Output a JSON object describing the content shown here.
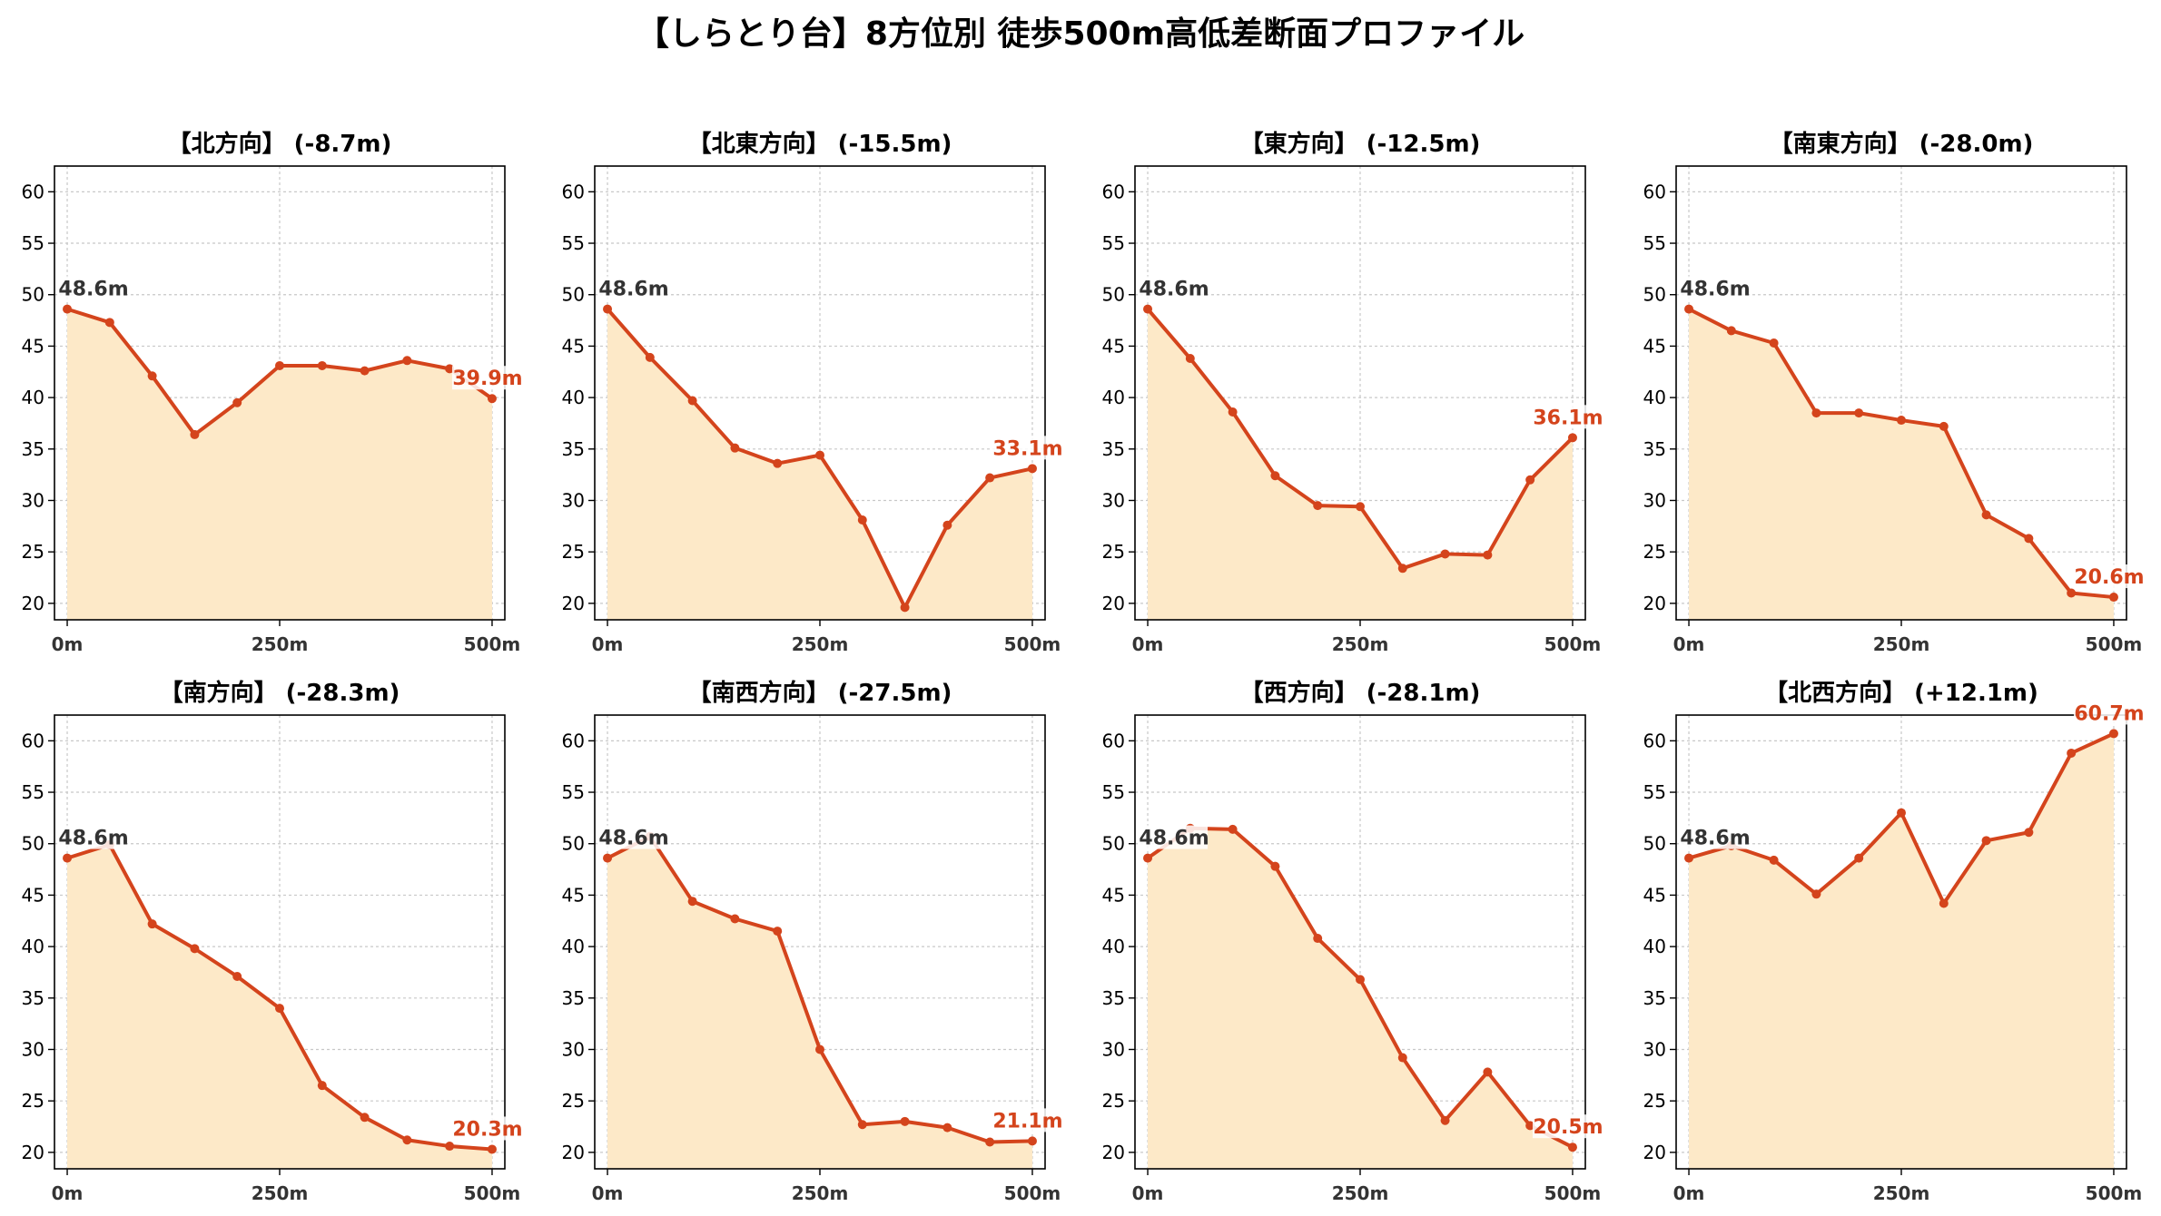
{
  "title": "【しらとり台】8方位別 徒歩500m高低差断面プロファイル",
  "colors": {
    "line": "#d4441c",
    "fill": "#fde9c8",
    "start_label": "#333333",
    "end_label": "#d4441c",
    "grid": "#c8c8c8",
    "axis": "#000000"
  },
  "chart_data": [
    {
      "type": "area",
      "title": "【北方向】 (-8.7m)",
      "x": [
        0,
        50,
        100,
        150,
        200,
        250,
        300,
        350,
        400,
        450,
        500
      ],
      "y": [
        48.6,
        47.3,
        42.1,
        36.4,
        39.5,
        43.1,
        43.1,
        42.6,
        43.6,
        42.8,
        39.9
      ],
      "start_label": "48.6m",
      "end_label": "39.9m",
      "xticks": [
        "0m",
        "250m",
        "500m"
      ],
      "xtick_values": [
        0,
        250,
        500
      ],
      "yticks": [
        20,
        25,
        30,
        35,
        40,
        45,
        50,
        55,
        60
      ],
      "ylim": [
        18.4,
        62.5
      ],
      "xlim": [
        -15,
        515
      ],
      "grid": true
    },
    {
      "type": "area",
      "title": "【北東方向】 (-15.5m)",
      "x": [
        0,
        50,
        100,
        150,
        200,
        250,
        300,
        350,
        400,
        450,
        500
      ],
      "y": [
        48.6,
        43.9,
        39.7,
        35.1,
        33.6,
        34.4,
        28.1,
        19.6,
        27.6,
        32.2,
        33.1
      ],
      "start_label": "48.6m",
      "end_label": "33.1m",
      "xticks": [
        "0m",
        "250m",
        "500m"
      ],
      "xtick_values": [
        0,
        250,
        500
      ],
      "yticks": [
        20,
        25,
        30,
        35,
        40,
        45,
        50,
        55,
        60
      ],
      "ylim": [
        18.4,
        62.5
      ],
      "xlim": [
        -15,
        515
      ],
      "grid": true
    },
    {
      "type": "area",
      "title": "【東方向】 (-12.5m)",
      "x": [
        0,
        50,
        100,
        150,
        200,
        250,
        300,
        350,
        400,
        450,
        500
      ],
      "y": [
        48.6,
        43.8,
        38.6,
        32.4,
        29.5,
        29.4,
        23.4,
        24.8,
        24.7,
        32.0,
        36.1
      ],
      "start_label": "48.6m",
      "end_label": "36.1m",
      "xticks": [
        "0m",
        "250m",
        "500m"
      ],
      "xtick_values": [
        0,
        250,
        500
      ],
      "yticks": [
        20,
        25,
        30,
        35,
        40,
        45,
        50,
        55,
        60
      ],
      "ylim": [
        18.4,
        62.5
      ],
      "xlim": [
        -15,
        515
      ],
      "grid": true
    },
    {
      "type": "area",
      "title": "【南東方向】 (-28.0m)",
      "x": [
        0,
        50,
        100,
        150,
        200,
        250,
        300,
        350,
        400,
        450,
        500
      ],
      "y": [
        48.6,
        46.5,
        45.3,
        38.5,
        38.5,
        37.8,
        37.2,
        28.6,
        26.3,
        21.0,
        20.6
      ],
      "start_label": "48.6m",
      "end_label": "20.6m",
      "xticks": [
        "0m",
        "250m",
        "500m"
      ],
      "xtick_values": [
        0,
        250,
        500
      ],
      "yticks": [
        20,
        25,
        30,
        35,
        40,
        45,
        50,
        55,
        60
      ],
      "ylim": [
        18.4,
        62.5
      ],
      "xlim": [
        -15,
        515
      ],
      "grid": true
    },
    {
      "type": "area",
      "title": "【南方向】 (-28.3m)",
      "x": [
        0,
        50,
        100,
        150,
        200,
        250,
        300,
        350,
        400,
        450,
        500
      ],
      "y": [
        48.6,
        49.9,
        42.2,
        39.8,
        37.1,
        34.0,
        26.5,
        23.4,
        21.2,
        20.6,
        20.3
      ],
      "start_label": "48.6m",
      "end_label": "20.3m",
      "xticks": [
        "0m",
        "250m",
        "500m"
      ],
      "xtick_values": [
        0,
        250,
        500
      ],
      "yticks": [
        20,
        25,
        30,
        35,
        40,
        45,
        50,
        55,
        60
      ],
      "ylim": [
        18.4,
        62.5
      ],
      "xlim": [
        -15,
        515
      ],
      "grid": true
    },
    {
      "type": "area",
      "title": "【南西方向】 (-27.5m)",
      "x": [
        0,
        50,
        100,
        150,
        200,
        250,
        300,
        350,
        400,
        450,
        500
      ],
      "y": [
        48.6,
        50.7,
        44.4,
        42.7,
        41.5,
        30.0,
        22.7,
        23.0,
        22.4,
        21.0,
        21.1
      ],
      "start_label": "48.6m",
      "end_label": "21.1m",
      "xticks": [
        "0m",
        "250m",
        "500m"
      ],
      "xtick_values": [
        0,
        250,
        500
      ],
      "yticks": [
        20,
        25,
        30,
        35,
        40,
        45,
        50,
        55,
        60
      ],
      "ylim": [
        18.4,
        62.5
      ],
      "xlim": [
        -15,
        515
      ],
      "grid": true
    },
    {
      "type": "area",
      "title": "【西方向】 (-28.1m)",
      "x": [
        0,
        50,
        100,
        150,
        200,
        250,
        300,
        350,
        400,
        450,
        500
      ],
      "y": [
        48.6,
        51.5,
        51.4,
        47.8,
        40.8,
        36.8,
        29.2,
        23.1,
        27.8,
        22.6,
        20.5
      ],
      "start_label": "48.6m",
      "end_label": "20.5m",
      "xticks": [
        "0m",
        "250m",
        "500m"
      ],
      "xtick_values": [
        0,
        250,
        500
      ],
      "yticks": [
        20,
        25,
        30,
        35,
        40,
        45,
        50,
        55,
        60
      ],
      "ylim": [
        18.4,
        62.5
      ],
      "xlim": [
        -15,
        515
      ],
      "grid": true
    },
    {
      "type": "area",
      "title": "【北西方向】 (+12.1m)",
      "x": [
        0,
        50,
        100,
        150,
        200,
        250,
        300,
        350,
        400,
        450,
        500
      ],
      "y": [
        48.6,
        49.8,
        48.4,
        45.1,
        48.6,
        53.0,
        44.2,
        50.3,
        51.1,
        58.8,
        60.7
      ],
      "start_label": "48.6m",
      "end_label": "60.7m",
      "xticks": [
        "0m",
        "250m",
        "500m"
      ],
      "xtick_values": [
        0,
        250,
        500
      ],
      "yticks": [
        20,
        25,
        30,
        35,
        40,
        45,
        50,
        55,
        60
      ],
      "ylim": [
        18.4,
        62.5
      ],
      "xlim": [
        -15,
        515
      ],
      "grid": true
    }
  ]
}
